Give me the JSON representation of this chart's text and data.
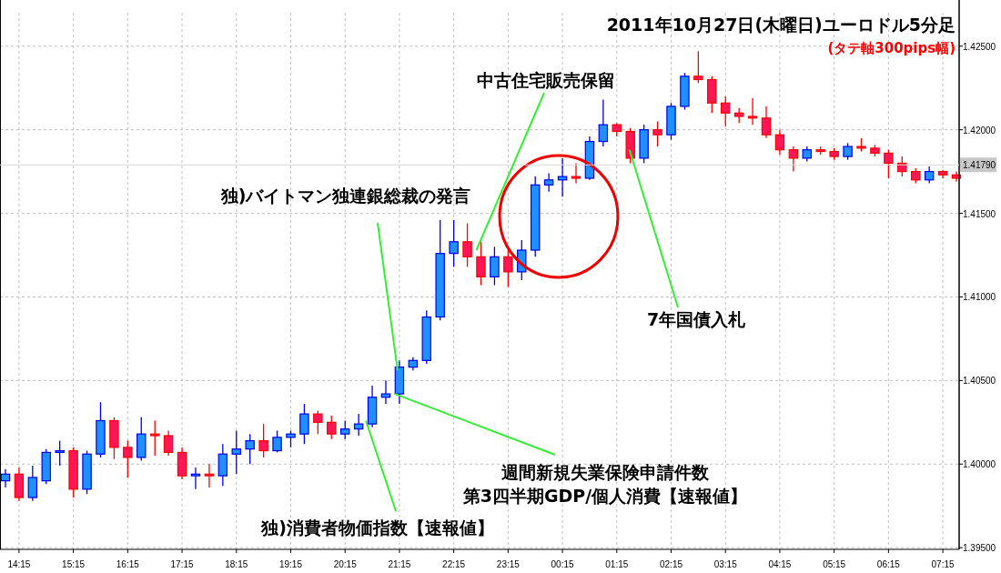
{
  "chart_data": {
    "type": "candlestick",
    "title": "2011年10月27日(木曜日)ユーロドル5分足",
    "subtitle": "(タテ軸300pips幅)",
    "x": [
      "2011-10-27T14:00",
      "2011-10-27T14:15",
      "2011-10-27T14:30",
      "2011-10-27T14:45",
      "2011-10-27T15:00",
      "2011-10-27T15:15",
      "2011-10-27T15:30",
      "2011-10-27T15:45",
      "2011-10-27T16:00",
      "2011-10-27T16:15",
      "2011-10-27T16:30",
      "2011-10-27T16:45",
      "2011-10-27T17:00",
      "2011-10-27T17:15",
      "2011-10-27T17:30",
      "2011-10-27T17:45",
      "2011-10-27T18:00",
      "2011-10-27T18:15",
      "2011-10-27T18:30",
      "2011-10-27T18:45",
      "2011-10-27T19:00",
      "2011-10-27T19:15",
      "2011-10-27T19:30",
      "2011-10-27T19:45",
      "2011-10-27T20:00",
      "2011-10-27T20:15",
      "2011-10-27T20:30",
      "2011-10-27T20:45",
      "2011-10-27T21:00",
      "2011-10-27T21:15",
      "2011-10-27T21:30",
      "2011-10-27T21:45",
      "2011-10-27T22:00",
      "2011-10-27T22:15",
      "2011-10-27T22:30",
      "2011-10-27T22:45",
      "2011-10-27T23:00",
      "2011-10-27T23:15",
      "2011-10-27T23:30",
      "2011-10-27T23:45",
      "2011-10-28T00:00",
      "2011-10-28T00:15",
      "2011-10-28T00:30",
      "2011-10-28T00:45",
      "2011-10-28T01:00",
      "2011-10-28T01:15",
      "2011-10-28T01:30",
      "2011-10-28T01:45",
      "2011-10-28T02:00",
      "2011-10-28T02:15",
      "2011-10-28T02:30",
      "2011-10-28T02:45",
      "2011-10-28T03:00",
      "2011-10-28T03:15",
      "2011-10-28T03:30",
      "2011-10-28T03:45",
      "2011-10-28T04:00",
      "2011-10-28T04:15",
      "2011-10-28T04:30",
      "2011-10-28T04:45",
      "2011-10-28T05:00",
      "2011-10-28T05:15",
      "2011-10-28T05:30",
      "2011-10-28T05:45",
      "2011-10-28T06:00",
      "2011-10-28T06:15",
      "2011-10-28T06:30",
      "2011-10-28T06:45",
      "2011-10-28T07:00",
      "2011-10-28T07:15",
      "2011-10-28T07:30"
    ],
    "ohlc": [
      [
        1.399,
        1.3997,
        1.3986,
        1.3994
      ],
      [
        1.3994,
        1.3998,
        1.3978,
        1.398
      ],
      [
        1.398,
        1.3999,
        1.3978,
        1.3992
      ],
      [
        1.399,
        1.4009,
        1.3988,
        1.4007
      ],
      [
        1.4007,
        1.4014,
        1.3999,
        1.4008
      ],
      [
        1.4008,
        1.401,
        1.398,
        1.3985
      ],
      [
        1.3985,
        1.4008,
        1.3982,
        1.4006
      ],
      [
        1.4006,
        1.4037,
        1.4004,
        1.4026
      ],
      [
        1.4026,
        1.4028,
        1.4003,
        1.401
      ],
      [
        1.401,
        1.4014,
        1.3992,
        1.4004
      ],
      [
        1.4004,
        1.4028,
        1.4002,
        1.4018
      ],
      [
        1.4018,
        1.4026,
        1.4005,
        1.4017
      ],
      [
        1.4017,
        1.402,
        1.4005,
        1.4007
      ],
      [
        1.4007,
        1.401,
        1.3991,
        1.3993
      ],
      [
        1.3993,
        1.3998,
        1.3985,
        1.3994
      ],
      [
        1.3994,
        1.4,
        1.3986,
        1.3993
      ],
      [
        1.3993,
        1.4012,
        1.3987,
        1.4006
      ],
      [
        1.4006,
        1.402,
        1.3994,
        1.4009
      ],
      [
        1.4009,
        1.4018,
        1.4,
        1.4014
      ],
      [
        1.4014,
        1.4024,
        1.4004,
        1.4008
      ],
      [
        1.4008,
        1.402,
        1.4007,
        1.4016
      ],
      [
        1.4016,
        1.402,
        1.401,
        1.4018
      ],
      [
        1.4018,
        1.4036,
        1.4012,
        1.403
      ],
      [
        1.403,
        1.4032,
        1.4018,
        1.4025
      ],
      [
        1.4025,
        1.4029,
        1.4015,
        1.4018
      ],
      [
        1.4018,
        1.4026,
        1.4015,
        1.4021
      ],
      [
        1.4021,
        1.403,
        1.4017,
        1.4024
      ],
      [
        1.4024,
        1.4047,
        1.4022,
        1.404
      ],
      [
        1.404,
        1.405,
        1.4036,
        1.4042
      ],
      [
        1.4042,
        1.4062,
        1.4036,
        1.4058
      ],
      [
        1.4058,
        1.4064,
        1.4056,
        1.4062
      ],
      [
        1.4062,
        1.4092,
        1.406,
        1.4088
      ],
      [
        1.4088,
        1.4146,
        1.4086,
        1.4126
      ],
      [
        1.4126,
        1.4146,
        1.4118,
        1.4133
      ],
      [
        1.4133,
        1.4144,
        1.4118,
        1.4124
      ],
      [
        1.4124,
        1.4133,
        1.4107,
        1.4112
      ],
      [
        1.4112,
        1.413,
        1.4107,
        1.4124
      ],
      [
        1.4124,
        1.4128,
        1.4106,
        1.4115
      ],
      [
        1.4115,
        1.4134,
        1.411,
        1.4128
      ],
      [
        1.4128,
        1.4172,
        1.4124,
        1.4167
      ],
      [
        1.4167,
        1.4174,
        1.4163,
        1.417
      ],
      [
        1.417,
        1.4183,
        1.416,
        1.4172
      ],
      [
        1.4172,
        1.418,
        1.4168,
        1.4171
      ],
      [
        1.4171,
        1.4196,
        1.417,
        1.4193
      ],
      [
        1.4193,
        1.4218,
        1.419,
        1.4203
      ],
      [
        1.4203,
        1.4204,
        1.4196,
        1.4199
      ],
      [
        1.4199,
        1.4201,
        1.418,
        1.4183
      ],
      [
        1.4183,
        1.4203,
        1.418,
        1.42
      ],
      [
        1.42,
        1.4205,
        1.419,
        1.4197
      ],
      [
        1.4197,
        1.4216,
        1.4194,
        1.4214
      ],
      [
        1.4214,
        1.4234,
        1.4212,
        1.4232
      ],
      [
        1.4232,
        1.4247,
        1.4228,
        1.423
      ],
      [
        1.423,
        1.4232,
        1.421,
        1.4216
      ],
      [
        1.4216,
        1.422,
        1.4202,
        1.421
      ],
      [
        1.421,
        1.4213,
        1.4204,
        1.4208
      ],
      [
        1.4208,
        1.4219,
        1.4203,
        1.4207
      ],
      [
        1.4207,
        1.4214,
        1.4195,
        1.4197
      ],
      [
        1.4197,
        1.42,
        1.4185,
        1.4188
      ],
      [
        1.4188,
        1.419,
        1.4175,
        1.4183
      ],
      [
        1.4183,
        1.419,
        1.4181,
        1.4188
      ],
      [
        1.4188,
        1.419,
        1.4185,
        1.4187
      ],
      [
        1.4187,
        1.4189,
        1.4182,
        1.4184
      ],
      [
        1.4184,
        1.4192,
        1.4182,
        1.419
      ],
      [
        1.419,
        1.4195,
        1.4187,
        1.4189
      ],
      [
        1.4189,
        1.4191,
        1.4184,
        1.4186
      ],
      [
        1.4186,
        1.4188,
        1.4171,
        1.418
      ],
      [
        1.418,
        1.4184,
        1.4172,
        1.4175
      ],
      [
        1.4175,
        1.4177,
        1.4168,
        1.417
      ],
      [
        1.417,
        1.4178,
        1.4168,
        1.4175
      ],
      [
        1.4175,
        1.4176,
        1.4171,
        1.4173
      ],
      [
        1.4173,
        1.4175,
        1.4169,
        1.4171
      ]
    ],
    "xlim": [
      "2011-10-27T13:54",
      "2011-10-28T07:33"
    ],
    "ylim": [
      1.3949,
      1.427
    ],
    "xticks": [
      {
        "value": "2011-10-27T14:15",
        "label": "14:15"
      },
      {
        "value": "2011-10-27T15:15",
        "label": "15:15"
      },
      {
        "value": "2011-10-27T16:15",
        "label": "16:15"
      },
      {
        "value": "2011-10-27T17:15",
        "label": "17:15"
      },
      {
        "value": "2011-10-27T18:15",
        "label": "18:15"
      },
      {
        "value": "2011-10-27T19:15",
        "label": "19:15"
      },
      {
        "value": "2011-10-27T20:15",
        "label": "20:15"
      },
      {
        "value": "2011-10-27T21:15",
        "label": "21:15"
      },
      {
        "value": "2011-10-27T22:15",
        "label": "22:15"
      },
      {
        "value": "2011-10-27T23:15",
        "label": "23:15"
      },
      {
        "value": "2011-10-28T00:15",
        "label": "00:15"
      },
      {
        "value": "2011-10-28T01:15",
        "label": "01:15"
      },
      {
        "value": "2011-10-28T02:15",
        "label": "02:15"
      },
      {
        "value": "2011-10-28T03:15",
        "label": "03:15"
      },
      {
        "value": "2011-10-28T04:15",
        "label": "04:15"
      },
      {
        "value": "2011-10-28T05:15",
        "label": "05:15"
      },
      {
        "value": "2011-10-28T06:15",
        "label": "06:15"
      },
      {
        "value": "2011-10-28T07:15",
        "label": "07:15"
      }
    ],
    "yticks": [
      {
        "value": 1.395,
        "label": "1.39500"
      },
      {
        "value": 1.4,
        "label": "1.40000"
      },
      {
        "value": 1.405,
        "label": "1.40500"
      },
      {
        "value": 1.41,
        "label": "1.41000"
      },
      {
        "value": 1.415,
        "label": "1.41500"
      },
      {
        "value": 1.42,
        "label": "1.42000"
      },
      {
        "value": 1.425,
        "label": "1.42500"
      }
    ],
    "grid": true,
    "ref_lines": [
      {
        "axis": "y",
        "value": 1.4179,
        "label": "1.41790"
      }
    ],
    "annotations": [
      {
        "text": "中古住宅販売保留",
        "x": "2011-10-27T22:40",
        "y": 1.4128
      },
      {
        "text": "独)バイトマン独連銀総裁の発言",
        "x": "2011-10-27T21:13",
        "y": 1.4056
      },
      {
        "text": "7年国債入札",
        "x": "2011-10-28T01:29",
        "y": 1.4188
      },
      {
        "text": "週間新規失業保険申請件数",
        "x": "2011-10-27T21:10",
        "y": 1.4042
      },
      "第3四半期GDP/個人消費【速報値】",
      {
        "text": "独)消費者物価指数【速報値】",
        "x": "2011-10-27T20:38",
        "y": 1.4026
      }
    ]
  }
}
